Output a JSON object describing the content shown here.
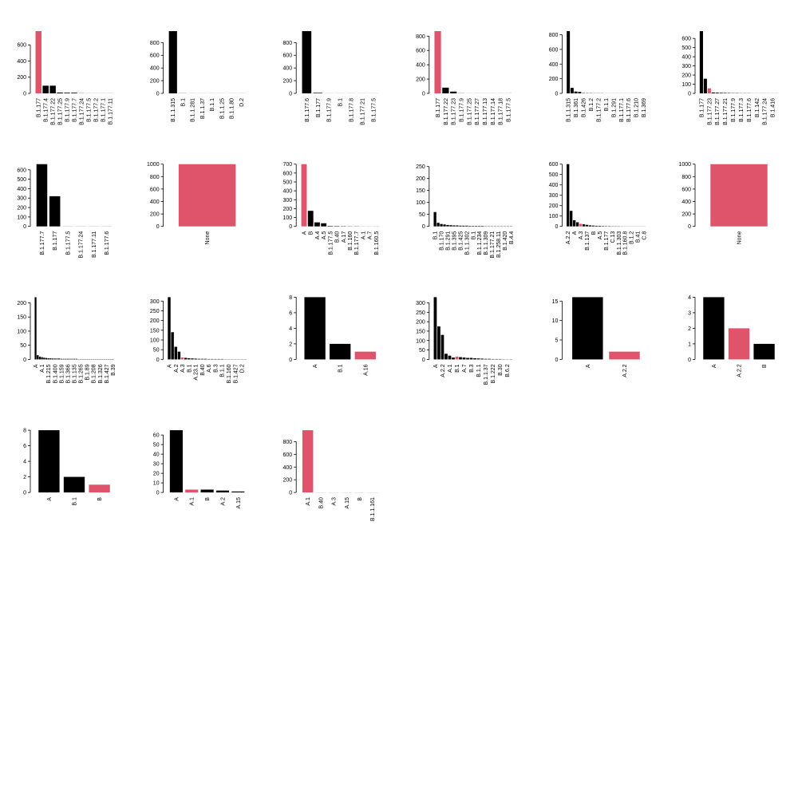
{
  "chart_data": [
    {
      "type": "bar",
      "categories": [
        "B.1.177",
        "B.1.177.4",
        "B.1.177.22",
        "B.1.177.25",
        "B.1.177.9",
        "B.1.177.7",
        "B.1.177.24",
        "B.1.177.5",
        "B.1.177.2",
        "B.1.177.1",
        "B.1.177.11"
      ],
      "values": [
        770,
        95,
        95,
        10,
        8,
        8,
        2,
        1,
        1,
        1,
        1
      ],
      "colors": [
        "#DF536B",
        "black",
        "black",
        "black",
        "black",
        "black",
        "black",
        "black",
        "black",
        "black",
        "black"
      ],
      "ylim": [
        0,
        770
      ],
      "yticks": [
        0,
        200,
        400,
        600
      ]
    },
    {
      "type": "bar",
      "categories": [
        "B.1.1.315",
        "B.1",
        "B.1.1.281",
        "B.1.1.37",
        "B.1.1",
        "B.1.1.25",
        "B.1.1.80",
        "D.2"
      ],
      "values": [
        980,
        2,
        1,
        1,
        1,
        1,
        1,
        1
      ],
      "colors": [
        "black",
        "black",
        "black",
        "black",
        "black",
        "black",
        "black",
        "black"
      ],
      "ylim": [
        0,
        980
      ],
      "yticks": [
        0,
        200,
        400,
        600,
        800
      ]
    },
    {
      "type": "bar",
      "categories": [
        "B.1.177.6",
        "B.1.177",
        "B.1.177.9",
        "B.1",
        "B.1.177.8",
        "B.1.177.21",
        "B.1.177.5"
      ],
      "values": [
        980,
        8,
        1,
        1,
        1,
        1,
        1
      ],
      "colors": [
        "black",
        "black",
        "black",
        "black",
        "black",
        "black",
        "black"
      ],
      "ylim": [
        0,
        980
      ],
      "yticks": [
        0,
        200,
        400,
        600,
        800
      ]
    },
    {
      "type": "bar",
      "categories": [
        "B.1.177",
        "B.1.177.22",
        "B.1.177.23",
        "B.1.177.9",
        "B.1.177.25",
        "B.1.177.27",
        "B.1.177.13",
        "B.1.177.14",
        "B.1.177.18",
        "B.1.177.5"
      ],
      "values": [
        870,
        80,
        25,
        2,
        1,
        1,
        1,
        1,
        1,
        1
      ],
      "colors": [
        "#DF536B",
        "black",
        "black",
        "black",
        "black",
        "black",
        "black",
        "black",
        "black",
        "black"
      ],
      "ylim": [
        0,
        870
      ],
      "yticks": [
        0,
        200,
        400,
        600,
        800
      ]
    },
    {
      "type": "bar",
      "categories": [
        "B.1.1.315",
        null,
        "B.1.361",
        null,
        "B.1.426",
        null,
        "B.1.2",
        null,
        "B.1.177.2",
        null,
        "B.1.1",
        null,
        "B.1.291",
        null,
        "B.1.177.1",
        null,
        "B.1.177.6",
        null,
        "B.1.210",
        null,
        "B.1.369"
      ],
      "values": [
        850,
        75,
        25,
        20,
        4,
        3,
        3,
        2,
        2,
        2,
        1,
        1,
        1,
        1,
        1,
        1,
        1,
        1,
        1,
        1,
        1
      ],
      "colors": [
        "black",
        "black",
        "black",
        "black",
        "black",
        "black",
        "black",
        "black",
        "black",
        "black",
        "black",
        "black",
        "black",
        "black",
        "black",
        "black",
        "black",
        "black",
        "black",
        "black",
        "black"
      ],
      "ylim": [
        0,
        850
      ],
      "yticks": [
        0,
        200,
        400,
        600,
        800
      ]
    },
    {
      "type": "bar",
      "categories": [
        "B.1.177",
        null,
        "B.1.177.23",
        null,
        "B.1.177.27",
        null,
        "B.1.177.21",
        null,
        "B.1.177.9",
        null,
        "B.1.177.3",
        null,
        "B.1.177.6",
        null,
        "B.1.142",
        null,
        "B.1.177.24",
        null,
        "B.1.416",
        null
      ],
      "values": [
        680,
        160,
        55,
        10,
        8,
        6,
        5,
        4,
        3,
        3,
        2,
        2,
        2,
        1,
        1,
        1,
        1,
        1,
        1,
        1
      ],
      "colors": [
        "black",
        "black",
        "#DF536B",
        "black",
        "black",
        "black",
        "black",
        "black",
        "black",
        "black",
        "black",
        "black",
        "black",
        "black",
        "black",
        "black",
        "black",
        "black",
        "black",
        "black"
      ],
      "ylim": [
        0,
        680
      ],
      "yticks": [
        0,
        100,
        200,
        300,
        400,
        500,
        600
      ]
    },
    {
      "type": "bar",
      "categories": [
        "B.1.177.7",
        "B.1.177",
        "B.1.177.5",
        "B.1.177.24",
        "B.1.177.11",
        "B.1.177.6"
      ],
      "values": [
        660,
        320,
        1,
        1,
        1,
        1
      ],
      "colors": [
        "black",
        "black",
        "black",
        "black",
        "black",
        "black"
      ],
      "ylim": [
        0,
        660
      ],
      "yticks": [
        0,
        100,
        200,
        300,
        400,
        500,
        600
      ]
    },
    {
      "type": "bar",
      "categories": [
        "None"
      ],
      "values": [
        1000
      ],
      "colors": [
        "#DF536B"
      ],
      "ylim": [
        0,
        1000
      ],
      "yticks": [
        0,
        200,
        400,
        600,
        800,
        1000
      ]
    },
    {
      "type": "bar",
      "categories": [
        "A",
        "B",
        "A.4",
        "A.5",
        "B.1.177.5",
        "B.40",
        "A.17",
        "B.1.160",
        "B.1.177.7",
        "A.1",
        "A.7",
        "B.1.160.5"
      ],
      "values": [
        700,
        175,
        45,
        35,
        5,
        4,
        3,
        2,
        2,
        1,
        1,
        1
      ],
      "colors": [
        "#DF536B",
        "black",
        "black",
        "black",
        "black",
        "black",
        "black",
        "black",
        "black",
        "black",
        "black",
        "black"
      ],
      "ylim": [
        0,
        700
      ],
      "yticks": [
        0,
        100,
        200,
        300,
        400,
        500,
        600,
        700
      ]
    },
    {
      "type": "bar",
      "categories": [
        "B.1",
        null,
        "B.1.170",
        null,
        "B.1.291",
        null,
        "B.1.395",
        null,
        "B.1.425",
        null,
        "B.1.1.302",
        null,
        "B.1",
        null,
        "B.1.1.234",
        null,
        "B.1.1.309",
        null,
        "B.1.177.21",
        null,
        "B.1.258.11",
        null,
        "B.1.420",
        null,
        "B.4.4"
      ],
      "values": [
        60,
        15,
        10,
        8,
        6,
        5,
        4,
        4,
        3,
        3,
        3,
        2,
        2,
        2,
        2,
        2,
        1,
        1,
        1,
        1,
        1,
        1,
        1,
        1,
        1
      ],
      "colors": [
        "black",
        "black",
        "black",
        "black",
        "black",
        "black",
        "black",
        "black",
        "black",
        "black",
        "black",
        "black",
        "black",
        "black",
        "black",
        "black",
        "black",
        "black",
        "black",
        "black",
        "black",
        "black",
        "black",
        "black",
        "black"
      ],
      "ylim": [
        0,
        260
      ],
      "yticks": [
        0,
        50,
        100,
        150,
        200,
        250
      ]
    },
    {
      "type": "bar",
      "categories": [
        "A.2.2",
        null,
        "A",
        null,
        "A.3",
        null,
        "B.1.137",
        null,
        "B",
        null,
        "A.5",
        null,
        "B.1.177",
        null,
        "C.13",
        null,
        "B.1.1.303",
        null,
        "B.1.160.8",
        null,
        "B.1.2",
        null,
        "B.41",
        null,
        "C.8"
      ],
      "values": [
        600,
        150,
        60,
        40,
        25,
        20,
        15,
        10,
        8,
        6,
        5,
        4,
        3,
        3,
        2,
        2,
        2,
        1,
        1,
        1,
        1,
        1,
        1,
        1,
        1
      ],
      "colors": [
        "black",
        "black",
        "black",
        "black",
        "#DF536B",
        "black",
        "black",
        "black",
        "black",
        "black",
        "black",
        "black",
        "black",
        "black",
        "black",
        "black",
        "black",
        "black",
        "black",
        "black",
        "black",
        "black",
        "black",
        "black",
        "black"
      ],
      "ylim": [
        0,
        600
      ],
      "yticks": [
        0,
        100,
        200,
        300,
        400,
        500,
        600
      ]
    },
    {
      "type": "bar",
      "categories": [
        "None"
      ],
      "values": [
        1000
      ],
      "colors": [
        "#DF536B"
      ],
      "ylim": [
        0,
        1000
      ],
      "yticks": [
        0,
        200,
        400,
        600,
        800,
        1000
      ]
    },
    {
      "type": "bar",
      "categories": [
        "A",
        null,
        null,
        "A.1",
        null,
        null,
        "B.1.215",
        null,
        null,
        "B.1.400",
        null,
        null,
        "B.1.159",
        null,
        null,
        "B.1.366",
        null,
        null,
        "B.1.135",
        null,
        null,
        "B.1.265",
        null,
        null,
        "B.1.89",
        null,
        null,
        "B.1.208",
        null,
        null,
        "B.1.326",
        null,
        null,
        "B.1.427",
        null,
        null,
        "B.39"
      ],
      "values": [
        220,
        15,
        10,
        8,
        6,
        5,
        4,
        4,
        3,
        3,
        3,
        3,
        2,
        2,
        2,
        2,
        2,
        2,
        2,
        2,
        1,
        1,
        1,
        1,
        1,
        1,
        1,
        1,
        1,
        1,
        1,
        1,
        1,
        1,
        1,
        1,
        1
      ],
      "colors": [
        "black",
        "black",
        "black",
        "black",
        "black",
        "black",
        "black",
        "black",
        "black",
        "black",
        "black",
        "black",
        "black",
        "black",
        "black",
        "black",
        "black",
        "black",
        "black",
        "black",
        "black",
        "black",
        "black",
        "black",
        "black",
        "black",
        "black",
        "black",
        "black",
        "black",
        "black",
        "black",
        "black",
        "black",
        "black",
        "black",
        "black"
      ],
      "ylim": [
        0,
        220
      ],
      "yticks": [
        0,
        50,
        100,
        150,
        200
      ]
    },
    {
      "type": "bar",
      "categories": [
        "A",
        null,
        "A.2",
        null,
        "A.3",
        null,
        "B.1",
        null,
        "A.23.1",
        null,
        "B.40",
        null,
        "A.6",
        null,
        "B.3",
        null,
        "B.1.1",
        null,
        "B.1.160",
        null,
        "B.1.427",
        null,
        "D.2",
        null
      ],
      "values": [
        320,
        140,
        65,
        40,
        10,
        8,
        6,
        5,
        4,
        3,
        3,
        3,
        2,
        2,
        2,
        2,
        2,
        1,
        1,
        1,
        1,
        1,
        1,
        1
      ],
      "colors": [
        "black",
        "black",
        "black",
        "black",
        "#DF536B",
        "black",
        "black",
        "black",
        "black",
        "black",
        "black",
        "black",
        "black",
        "black",
        "black",
        "black",
        "black",
        "black",
        "black",
        "black",
        "black",
        "black",
        "black",
        "black"
      ],
      "ylim": [
        0,
        320
      ],
      "yticks": [
        0,
        50,
        100,
        150,
        200,
        250,
        300
      ]
    },
    {
      "type": "bar",
      "categories": [
        "A",
        "B.1",
        "A.16"
      ],
      "values": [
        8,
        2,
        1
      ],
      "colors": [
        "black",
        "black",
        "#DF536B"
      ],
      "ylim": [
        0,
        8
      ],
      "yticks": [
        0,
        2,
        4,
        6,
        8
      ]
    },
    {
      "type": "bar",
      "categories": [
        "A",
        null,
        "A.2.2",
        null,
        "A.1",
        null,
        "B.1",
        null,
        "A.7",
        null,
        "B.3",
        null,
        "B.1.1",
        null,
        "B.1.1.37",
        null,
        "B.1.222",
        null,
        "B.30",
        null,
        "B.6.2",
        null
      ],
      "values": [
        330,
        175,
        130,
        30,
        20,
        10,
        15,
        12,
        10,
        8,
        8,
        6,
        5,
        4,
        3,
        3,
        2,
        2,
        2,
        1,
        1,
        1
      ],
      "colors": [
        "black",
        "black",
        "black",
        "black",
        "black",
        "black",
        "#DF536B",
        "black",
        "black",
        "black",
        "black",
        "black",
        "black",
        "black",
        "black",
        "black",
        "black",
        "black",
        "black",
        "black",
        "black",
        "black"
      ],
      "ylim": [
        0,
        330
      ],
      "yticks": [
        0,
        50,
        100,
        150,
        200,
        250,
        300
      ]
    },
    {
      "type": "bar",
      "categories": [
        "A",
        "A.2.2"
      ],
      "values": [
        16,
        2
      ],
      "colors": [
        "black",
        "#DF536B"
      ],
      "ylim": [
        0,
        16
      ],
      "yticks": [
        0,
        5,
        10,
        15
      ]
    },
    {
      "type": "bar",
      "categories": [
        "A",
        "A.2.2",
        "B"
      ],
      "values": [
        4,
        2,
        1
      ],
      "colors": [
        "black",
        "#DF536B",
        "black"
      ],
      "ylim": [
        0,
        4
      ],
      "yticks": [
        0,
        1,
        2,
        3,
        4
      ]
    },
    {
      "type": "bar",
      "categories": [
        "A",
        "B.1",
        "B"
      ],
      "values": [
        8,
        2,
        1
      ],
      "colors": [
        "black",
        "black",
        "#DF536B"
      ],
      "ylim": [
        0,
        8
      ],
      "yticks": [
        0,
        2,
        4,
        6,
        8
      ]
    },
    {
      "type": "bar",
      "categories": [
        "A",
        "A.1",
        "B",
        "A.2",
        "A.15"
      ],
      "values": [
        65,
        3,
        3,
        2,
        1
      ],
      "colors": [
        "black",
        "#DF536B",
        "black",
        "black",
        "black"
      ],
      "ylim": [
        0,
        65
      ],
      "yticks": [
        0,
        10,
        20,
        30,
        40,
        50,
        60
      ]
    },
    {
      "type": "bar",
      "categories": [
        "A.1",
        "B.40",
        "A.3",
        "A.15",
        "B",
        "B.1.1.161"
      ],
      "values": [
        980,
        1,
        1,
        1,
        1,
        1
      ],
      "colors": [
        "#DF536B",
        "black",
        "black",
        "black",
        "black",
        "black"
      ],
      "ylim": [
        0,
        980
      ],
      "yticks": [
        0,
        200,
        400,
        600,
        800
      ]
    }
  ]
}
